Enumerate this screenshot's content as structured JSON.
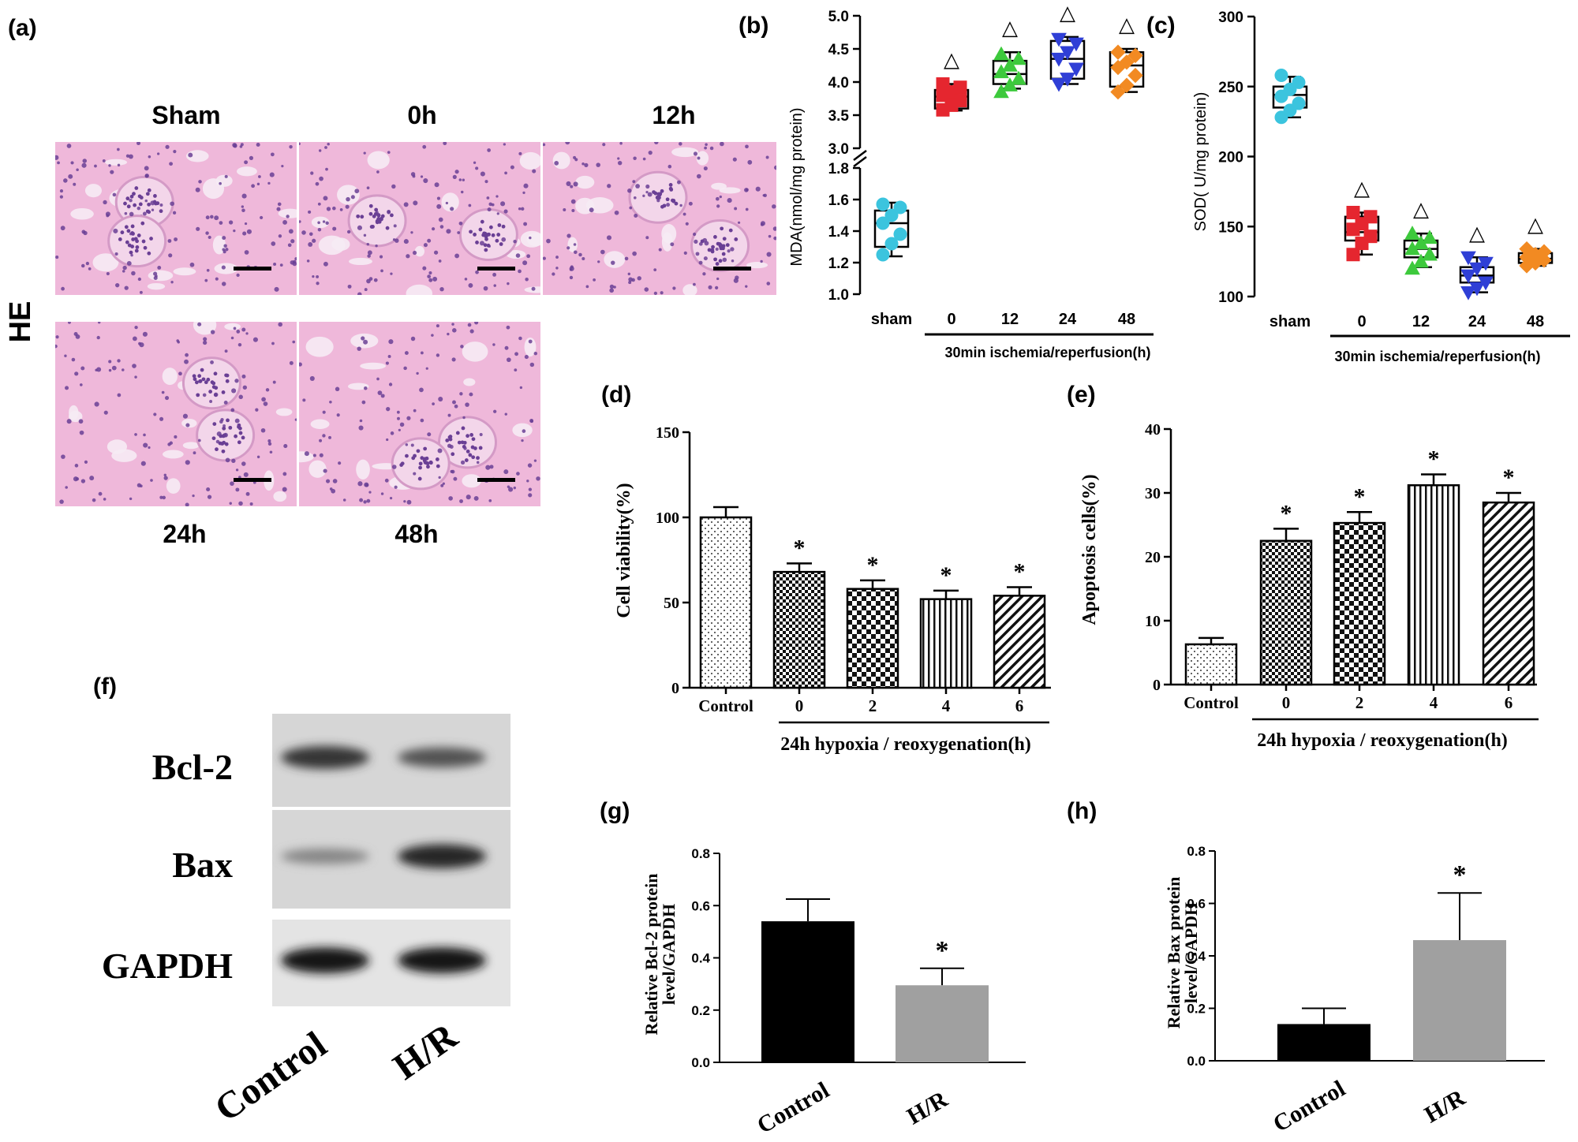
{
  "panels": {
    "a": {
      "label": "(a)",
      "stain_label": "HE",
      "tiles": [
        {
          "label": "Sham"
        },
        {
          "label": "0h"
        },
        {
          "label": "12h"
        },
        {
          "label": "24h"
        },
        {
          "label": "48h"
        }
      ],
      "tissue_colors": {
        "background": "#efb8da",
        "nuclei": "#6a3f95",
        "lumen": "#f6ebf4"
      }
    },
    "f": {
      "label": "(f)",
      "rows": [
        {
          "label": "Bcl-2",
          "bands": [
            0.78,
            0.62
          ]
        },
        {
          "label": "Bax",
          "bands": [
            0.35,
            0.85
          ]
        },
        {
          "label": "GAPDH",
          "bands": [
            0.95,
            0.95
          ]
        }
      ],
      "lanes": [
        "Control",
        "H/R"
      ]
    }
  },
  "chart_data": [
    {
      "id": "b",
      "panel_label": "(b)",
      "type": "box",
      "ylabel": "MDA(nmol/mg protein)",
      "broken_axis": true,
      "ylim_lower": [
        1.0,
        1.8
      ],
      "ylim_upper": [
        3.0,
        5.0
      ],
      "yticks_lower": [
        "1.0",
        "1.2",
        "1.4",
        "1.6",
        "1.8"
      ],
      "yticks_upper": [
        "3.0",
        "3.5",
        "4.0",
        "4.5",
        "5.0"
      ],
      "categories": [
        "sham",
        "0",
        "12",
        "24",
        "48"
      ],
      "group_label": "30min ischemia/reperfusion(h)",
      "colors": [
        "#3bc4de",
        "#e5262f",
        "#3dc93c",
        "#2f3fd6",
        "#f28a22"
      ],
      "markers": [
        "circle",
        "square",
        "triangle",
        "triangle-down",
        "diamond"
      ],
      "points": [
        [
          1.25,
          1.32,
          1.38,
          1.45,
          1.5,
          1.55,
          1.57
        ],
        [
          3.58,
          3.65,
          3.72,
          3.8,
          3.85,
          3.92,
          3.97
        ],
        [
          3.85,
          3.95,
          4.05,
          4.15,
          4.25,
          4.35,
          4.42
        ],
        [
          3.97,
          4.05,
          4.2,
          4.35,
          4.45,
          4.58,
          4.65
        ],
        [
          3.85,
          3.95,
          4.1,
          4.22,
          4.3,
          4.4,
          4.45
        ]
      ],
      "boxes": [
        {
          "min": 1.24,
          "q1": 1.3,
          "median": 1.45,
          "q3": 1.53,
          "max": 1.58
        },
        {
          "min": 3.57,
          "q1": 3.6,
          "median": 3.78,
          "q3": 3.88,
          "max": 3.97
        },
        {
          "min": 3.9,
          "q1": 3.97,
          "median": 4.12,
          "q3": 4.32,
          "max": 4.45
        },
        {
          "min": 3.97,
          "q1": 4.05,
          "median": 4.35,
          "q3": 4.62,
          "max": 4.68
        },
        {
          "min": 3.85,
          "q1": 3.93,
          "median": 4.25,
          "q3": 4.45,
          "max": 4.5
        }
      ],
      "significance": [
        "",
        "△",
        "△",
        "△",
        "△"
      ]
    },
    {
      "id": "c",
      "panel_label": "(c)",
      "type": "box",
      "ylabel": "SOD( U/mg protein)",
      "ylim": [
        100,
        300
      ],
      "yticks": [
        "100",
        "150",
        "200",
        "250",
        "300"
      ],
      "categories": [
        "sham",
        "0",
        "12",
        "24",
        "48"
      ],
      "group_label": "30min ischemia/reperfusion(h)",
      "colors": [
        "#3bc4de",
        "#e5262f",
        "#3dc93c",
        "#2f3fd6",
        "#f28a22"
      ],
      "markers": [
        "circle",
        "square",
        "triangle",
        "triangle-down",
        "diamond"
      ],
      "points": [
        [
          228,
          233,
          238,
          243,
          248,
          253,
          258
        ],
        [
          130,
          138,
          143,
          148,
          152,
          157,
          160
        ],
        [
          120,
          125,
          130,
          134,
          138,
          142,
          145
        ],
        [
          103,
          106,
          110,
          115,
          120,
          124,
          128
        ],
        [
          122,
          124,
          126,
          128,
          130,
          132,
          134
        ]
      ],
      "boxes": [
        {
          "min": 228,
          "q1": 235,
          "median": 244,
          "q3": 250,
          "max": 257
        },
        {
          "min": 130,
          "q1": 140,
          "median": 146,
          "q3": 157,
          "max": 160
        },
        {
          "min": 121,
          "q1": 128,
          "median": 134,
          "q3": 140,
          "max": 145
        },
        {
          "min": 103,
          "q1": 110,
          "median": 115,
          "q3": 121,
          "max": 128
        },
        {
          "min": 122,
          "q1": 124,
          "median": 127,
          "q3": 131,
          "max": 134
        }
      ],
      "significance": [
        "",
        "△",
        "△",
        "△",
        "△"
      ]
    },
    {
      "id": "d",
      "panel_label": "(d)",
      "type": "bar",
      "ylabel": "Cell viability(%)",
      "ylim": [
        0,
        150
      ],
      "yticks": [
        "0",
        "50",
        "100",
        "150"
      ],
      "categories": [
        "Control",
        "0",
        "2",
        "4",
        "6"
      ],
      "group_label": "24h hypoxia / reoxygenation(h)",
      "values": [
        100,
        68,
        58,
        52,
        54
      ],
      "errors": [
        6,
        5,
        5,
        5,
        5
      ],
      "patterns": [
        "dots",
        "checker-small",
        "checker-large",
        "vlines",
        "diag"
      ],
      "significance": [
        "",
        "*",
        "*",
        "*",
        "*"
      ]
    },
    {
      "id": "e",
      "panel_label": "(e)",
      "type": "bar",
      "ylabel": "Apoptosis cells(%)",
      "ylim": [
        0,
        40
      ],
      "yticks": [
        "0",
        "10",
        "20",
        "30",
        "40"
      ],
      "categories": [
        "Control",
        "0",
        "2",
        "4",
        "6"
      ],
      "group_label": "24h hypoxia / reoxygenation(h)",
      "values": [
        6.3,
        22.5,
        25.3,
        31.2,
        28.5
      ],
      "errors": [
        1.0,
        1.9,
        1.7,
        1.7,
        1.5
      ],
      "patterns": [
        "dots",
        "checker-small",
        "checker-large",
        "vlines",
        "diag"
      ],
      "significance": [
        "",
        "*",
        "*",
        "*",
        "*"
      ]
    },
    {
      "id": "g",
      "panel_label": "(g)",
      "type": "bar",
      "ylabel": [
        "Relative Bcl-2 protein",
        "level/GAPDH"
      ],
      "ylim": [
        0,
        0.8
      ],
      "yticks": [
        "0.0",
        "0.2",
        "0.4",
        "0.6",
        "0.8"
      ],
      "categories": [
        "Control",
        "H/R"
      ],
      "values": [
        0.54,
        0.295
      ],
      "errors": [
        0.085,
        0.065
      ],
      "colors": [
        "#000000",
        "#a0a0a0"
      ],
      "significance": [
        "",
        "*"
      ]
    },
    {
      "id": "h",
      "panel_label": "(h)",
      "type": "bar",
      "ylabel": [
        "Relative Bax protein",
        "level/GAPDH"
      ],
      "ylim": [
        0,
        0.8
      ],
      "yticks": [
        "0.0",
        "0.2",
        "0.4",
        "0.6",
        "0.8"
      ],
      "categories": [
        "Control",
        "H/R"
      ],
      "values": [
        0.14,
        0.46
      ],
      "errors": [
        0.06,
        0.18
      ],
      "colors": [
        "#000000",
        "#a0a0a0"
      ],
      "significance": [
        "",
        "*"
      ]
    }
  ]
}
